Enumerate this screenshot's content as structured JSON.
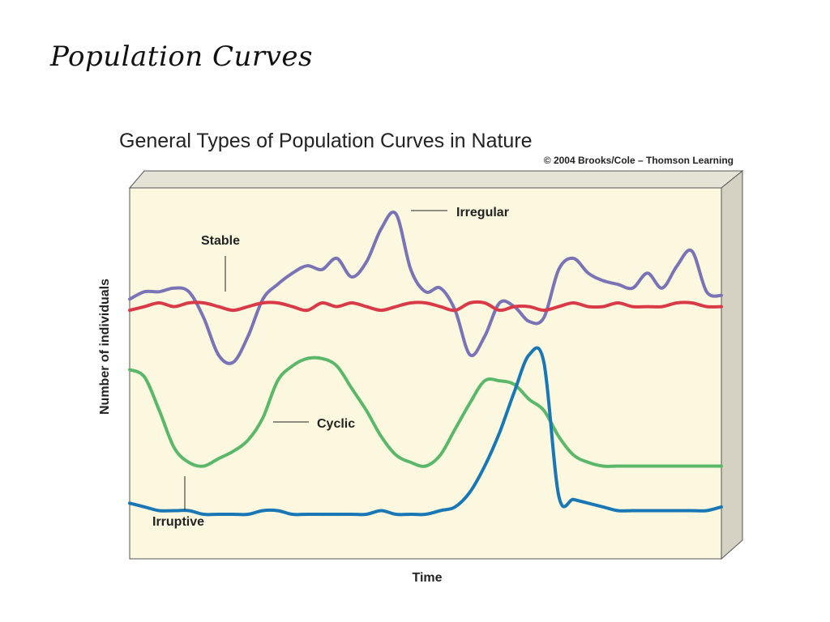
{
  "slide": {
    "title": "Population Curves"
  },
  "chart_data": {
    "type": "line",
    "title": "General Types of Population Curves in Nature",
    "credit": "© 2004 Brooks/Cole – Thomson Learning",
    "xlabel": "Time",
    "ylabel": "Number of individuals",
    "x": [
      0,
      1,
      2,
      3,
      4,
      5,
      6,
      7,
      8,
      9,
      10,
      11,
      12,
      13,
      14,
      15,
      16,
      17,
      18,
      19,
      20,
      21,
      22,
      23,
      24,
      25,
      26,
      27,
      28,
      29,
      30,
      31,
      32,
      33,
      34,
      35,
      36,
      37,
      38,
      39,
      40
    ],
    "ylim": [
      0,
      100
    ],
    "xlim": [
      0,
      40
    ],
    "grid": false,
    "legend": "none",
    "series": [
      {
        "name": "Irregular",
        "color": "#7a73b5",
        "values": [
          70,
          72,
          72,
          73,
          72,
          65,
          55,
          53,
          60,
          70,
          74,
          77,
          79,
          78,
          81,
          76,
          80,
          89,
          93,
          78,
          72,
          73,
          67,
          55,
          60,
          69,
          68,
          64,
          65,
          78,
          81,
          77,
          75,
          74,
          73,
          77,
          73,
          79,
          83,
          72,
          71
        ]
      },
      {
        "name": "Stable",
        "color": "#d93a48",
        "values": [
          67,
          68,
          69,
          68,
          69,
          69,
          68,
          67,
          68,
          69,
          69,
          68,
          67,
          69,
          68,
          69,
          68,
          67,
          68,
          69,
          69,
          68,
          67,
          69,
          69,
          67,
          68,
          68,
          67,
          68,
          69,
          68,
          68,
          69,
          68,
          68,
          68,
          69,
          69,
          68,
          68
        ]
      },
      {
        "name": "Cyclic",
        "color": "#5bb86a",
        "values": [
          51,
          49,
          40,
          30,
          26,
          25,
          27,
          29,
          32,
          38,
          48,
          52,
          54,
          54,
          52,
          46,
          40,
          33,
          28,
          26,
          25,
          28,
          35,
          42,
          48,
          48,
          47,
          43,
          40,
          33,
          28,
          26,
          25,
          25,
          25,
          25,
          25,
          25,
          25,
          25,
          25
        ]
      },
      {
        "name": "Irruptive",
        "color": "#1877b4",
        "values": [
          15,
          14,
          13,
          13,
          13,
          12,
          12,
          12,
          12,
          13,
          13,
          12,
          12,
          12,
          12,
          12,
          12,
          13,
          12,
          12,
          12,
          13,
          14,
          18,
          25,
          34,
          45,
          55,
          53,
          17,
          16,
          15,
          14,
          13,
          13,
          13,
          13,
          13,
          13,
          13,
          14
        ]
      }
    ],
    "annotations": [
      {
        "text": "Irregular",
        "series": "Irregular"
      },
      {
        "text": "Stable",
        "series": "Stable"
      },
      {
        "text": "Cyclic",
        "series": "Cyclic"
      },
      {
        "text": "Irruptive",
        "series": "Irruptive"
      }
    ]
  }
}
